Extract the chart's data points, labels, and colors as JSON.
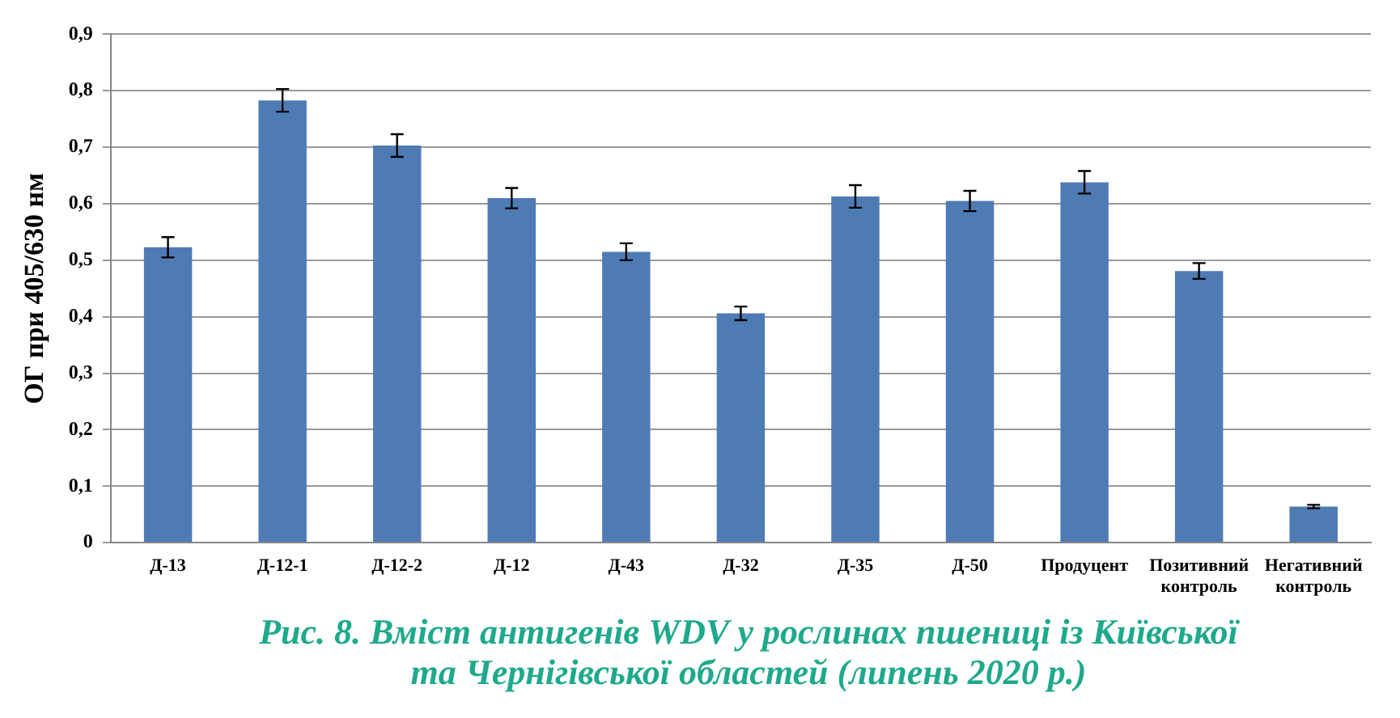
{
  "chart_data": {
    "type": "bar",
    "ylabel": "ОГ при 405/630 нм",
    "categories": [
      "Д-13",
      "Д-12-1",
      "Д-12-2",
      "Д-12",
      "Д-43",
      "Д-32",
      "Д-35",
      "Д-50",
      "Продуцент",
      "Позитивний контроль",
      "Негативний контроль"
    ],
    "values": [
      0.523,
      0.783,
      0.703,
      0.61,
      0.515,
      0.406,
      0.613,
      0.605,
      0.638,
      0.481,
      0.064
    ],
    "errors": [
      0.018,
      0.02,
      0.02,
      0.018,
      0.015,
      0.012,
      0.02,
      0.018,
      0.02,
      0.014,
      0.003
    ],
    "color": "#4f7bb5",
    "ylim": [
      0,
      0.9
    ],
    "yticks": [
      {
        "value": 0,
        "label": "0"
      },
      {
        "value": 0.1,
        "label": "0,1"
      },
      {
        "value": 0.2,
        "label": "0,2"
      },
      {
        "value": 0.3,
        "label": "0,3"
      },
      {
        "value": 0.4,
        "label": "0,4"
      },
      {
        "value": 0.5,
        "label": "0,5"
      },
      {
        "value": 0.6,
        "label": "0,6"
      },
      {
        "value": 0.7,
        "label": "0,7"
      },
      {
        "value": 0.8,
        "label": "0,8"
      },
      {
        "value": 0.9,
        "label": "0,9"
      }
    ],
    "grid": "y",
    "legend": false,
    "annotations": [
      "Рис. 8. Вміст антигенів WDV у рослинах пшениці із Київської",
      "та  Чернігівської областей (липень 2020 р.)"
    ]
  }
}
